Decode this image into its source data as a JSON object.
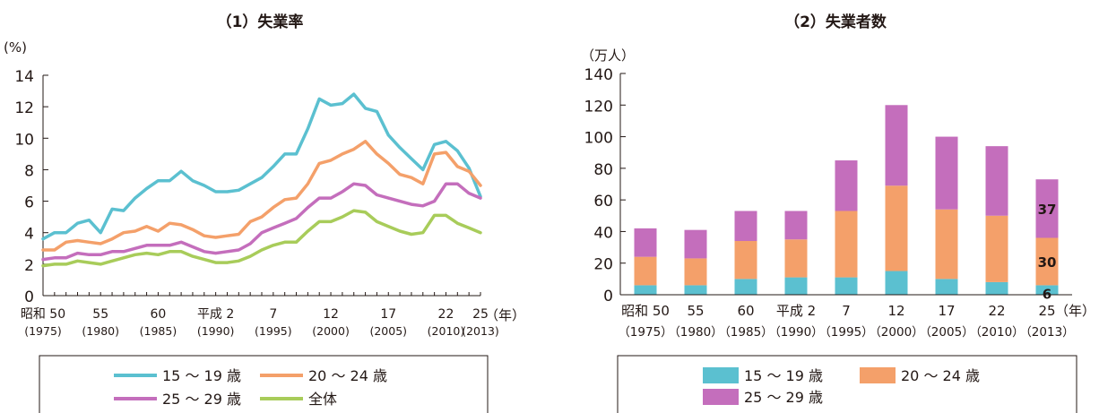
{
  "chart_data": [
    {
      "type": "line",
      "title": "（1）失業率",
      "unit": "(%)",
      "year_unit": "（年）",
      "ylim": [
        0,
        14
      ],
      "yticks": [
        "0",
        "2",
        "4",
        "6",
        "8",
        "10",
        "12",
        "14"
      ],
      "x": [
        1975,
        1976,
        1977,
        1978,
        1979,
        1980,
        1981,
        1982,
        1983,
        1984,
        1985,
        1986,
        1987,
        1988,
        1989,
        1990,
        1991,
        1992,
        1993,
        1994,
        1995,
        1996,
        1997,
        1998,
        1999,
        2000,
        2001,
        2002,
        2003,
        2004,
        2005,
        2006,
        2007,
        2008,
        2009,
        2010,
        2011,
        2012,
        2013
      ],
      "xticks": [
        {
          "x": 1975,
          "era": "昭和 50",
          "ad": "(1975)"
        },
        {
          "x": 1980,
          "era": "55",
          "ad": "(1980)"
        },
        {
          "x": 1985,
          "era": "60",
          "ad": "(1985)"
        },
        {
          "x": 1990,
          "era": "平成 2",
          "ad": "(1990)"
        },
        {
          "x": 1995,
          "era": "7",
          "ad": "(1995)"
        },
        {
          "x": 2000,
          "era": "12",
          "ad": "(2000)"
        },
        {
          "x": 2005,
          "era": "17",
          "ad": "(2005)"
        },
        {
          "x": 2010,
          "era": "22",
          "ad": "(2010)"
        },
        {
          "x": 2013,
          "era": "25",
          "ad": "(2013)"
        }
      ],
      "series": [
        {
          "name": "15 ～ 19 歳",
          "color": "#5bc0d0",
          "values": [
            3.6,
            4.0,
            4.0,
            4.6,
            4.8,
            4.0,
            5.5,
            5.4,
            6.2,
            6.8,
            7.3,
            7.3,
            7.9,
            7.3,
            7.0,
            6.6,
            6.6,
            6.7,
            7.1,
            7.5,
            8.2,
            9.0,
            9.0,
            10.6,
            12.5,
            12.1,
            12.2,
            12.8,
            11.9,
            11.7,
            10.2,
            9.4,
            8.7,
            8.0,
            9.6,
            9.8,
            9.2,
            8.1,
            6.3
          ]
        },
        {
          "name": "20 ～ 24 歳",
          "color": "#f4a06a",
          "values": [
            2.9,
            2.9,
            3.4,
            3.5,
            3.4,
            3.3,
            3.6,
            4.0,
            4.1,
            4.4,
            4.1,
            4.6,
            4.5,
            4.2,
            3.8,
            3.7,
            3.8,
            3.9,
            4.7,
            5.0,
            5.6,
            6.1,
            6.2,
            7.1,
            8.4,
            8.6,
            9.0,
            9.3,
            9.8,
            9.0,
            8.4,
            7.7,
            7.5,
            7.1,
            9.0,
            9.1,
            8.2,
            7.9,
            7.0
          ]
        },
        {
          "name": "25 ～ 29 歳",
          "color": "#c46ebc",
          "values": [
            2.3,
            2.4,
            2.4,
            2.7,
            2.6,
            2.6,
            2.8,
            2.8,
            3.0,
            3.2,
            3.2,
            3.2,
            3.4,
            3.1,
            2.8,
            2.7,
            2.8,
            2.9,
            3.3,
            4.0,
            4.3,
            4.6,
            4.9,
            5.6,
            6.2,
            6.2,
            6.6,
            7.1,
            7.0,
            6.4,
            6.2,
            6.0,
            5.8,
            5.7,
            6.0,
            7.1,
            7.1,
            6.5,
            6.2
          ]
        },
        {
          "name": "全体",
          "color": "#a8cc5a",
          "values": [
            1.9,
            2.0,
            2.0,
            2.2,
            2.1,
            2.0,
            2.2,
            2.4,
            2.6,
            2.7,
            2.6,
            2.8,
            2.8,
            2.5,
            2.3,
            2.1,
            2.1,
            2.2,
            2.5,
            2.9,
            3.2,
            3.4,
            3.4,
            4.1,
            4.7,
            4.7,
            5.0,
            5.4,
            5.3,
            4.7,
            4.4,
            4.1,
            3.9,
            4.0,
            5.1,
            5.1,
            4.6,
            4.3,
            4.0
          ]
        }
      ]
    },
    {
      "type": "bar",
      "stacked": true,
      "title": "（2）失業者数",
      "unit": "（万人）",
      "year_unit": "（年）",
      "ylim": [
        0,
        140
      ],
      "yticks": [
        "0",
        "20",
        "40",
        "60",
        "80",
        "100",
        "120",
        "140"
      ],
      "categories": [
        {
          "era": "昭和 50",
          "ad": "（1975）"
        },
        {
          "era": "55",
          "ad": "（1980）"
        },
        {
          "era": "60",
          "ad": "（1985）"
        },
        {
          "era": "平成 2",
          "ad": "（1990）"
        },
        {
          "era": "7",
          "ad": "（1995）"
        },
        {
          "era": "12",
          "ad": "（2000）"
        },
        {
          "era": "17",
          "ad": "（2005）"
        },
        {
          "era": "22",
          "ad": "（2010）"
        },
        {
          "era": "25",
          "ad": "（2013）"
        }
      ],
      "series": [
        {
          "name": "15 ～ 19 歳",
          "color": "#5bc0d0",
          "values": [
            6,
            6,
            10,
            11,
            11,
            15,
            10,
            8,
            6
          ]
        },
        {
          "name": "20 ～ 24 歳",
          "color": "#f4a06a",
          "values": [
            18,
            17,
            24,
            24,
            42,
            54,
            44,
            42,
            30
          ]
        },
        {
          "name": "25 ～ 29 歳",
          "color": "#c46ebc",
          "values": [
            18,
            18,
            19,
            18,
            32,
            51,
            46,
            44,
            37
          ]
        }
      ],
      "data_labels": [
        "6",
        "30",
        "37"
      ]
    }
  ]
}
